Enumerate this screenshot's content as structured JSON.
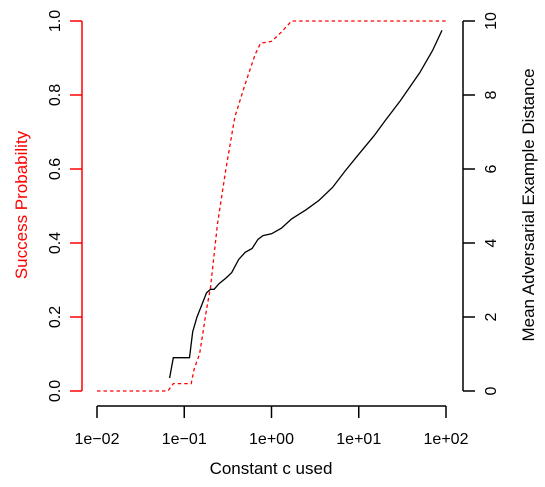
{
  "chart_data": {
    "type": "line",
    "title": "",
    "xlabel": "Constant c used",
    "x_scale": "log10",
    "x_ticks": [
      {
        "value": 0.01,
        "label": "1e−02"
      },
      {
        "value": 0.1,
        "label": "1e−01"
      },
      {
        "value": 1,
        "label": "1e+00"
      },
      {
        "value": 10,
        "label": "1e+01"
      },
      {
        "value": 100,
        "label": "1e+02"
      }
    ],
    "xlim": [
      0.01,
      100
    ],
    "left_axis": {
      "label": "Success Probability",
      "color": "#ff0000",
      "ylim": [
        0,
        1
      ],
      "ticks": [
        {
          "value": 0,
          "label": "0.0"
        },
        {
          "value": 0.2,
          "label": "0.2"
        },
        {
          "value": 0.4,
          "label": "0.4"
        },
        {
          "value": 0.6,
          "label": "0.6"
        },
        {
          "value": 0.8,
          "label": "0.8"
        },
        {
          "value": 1,
          "label": "1.0"
        }
      ]
    },
    "right_axis": {
      "label": "Mean Adversarial Example Distance",
      "color": "#000000",
      "ylim": [
        0,
        10
      ],
      "ticks": [
        {
          "value": 0,
          "label": "0"
        },
        {
          "value": 2,
          "label": "2"
        },
        {
          "value": 4,
          "label": "4"
        },
        {
          "value": 6,
          "label": "6"
        },
        {
          "value": 8,
          "label": "8"
        },
        {
          "value": 10,
          "label": "10"
        }
      ]
    },
    "grid": false,
    "legend": "none",
    "series": [
      {
        "axis": "left",
        "color": "#ff0000",
        "line_style": "dashed",
        "points": [
          [
            0.01,
            0.0
          ],
          [
            0.065,
            0.0
          ],
          [
            0.075,
            0.02
          ],
          [
            0.1,
            0.02
          ],
          [
            0.12,
            0.02
          ],
          [
            0.13,
            0.06
          ],
          [
            0.15,
            0.1
          ],
          [
            0.18,
            0.22
          ],
          [
            0.2,
            0.28
          ],
          [
            0.24,
            0.45
          ],
          [
            0.3,
            0.6
          ],
          [
            0.38,
            0.74
          ],
          [
            0.5,
            0.83
          ],
          [
            0.65,
            0.91
          ],
          [
            0.75,
            0.94
          ],
          [
            1.0,
            0.945
          ],
          [
            1.3,
            0.97
          ],
          [
            1.7,
            1.0
          ],
          [
            3,
            1.0
          ],
          [
            10,
            1.0
          ],
          [
            50,
            1.0
          ],
          [
            100,
            1.0
          ]
        ]
      },
      {
        "axis": "right",
        "color": "#000000",
        "line_style": "solid",
        "points": [
          [
            0.068,
            0.35
          ],
          [
            0.075,
            0.9
          ],
          [
            0.09,
            0.9
          ],
          [
            0.1,
            0.9
          ],
          [
            0.115,
            0.9
          ],
          [
            0.125,
            1.6
          ],
          [
            0.14,
            2.0
          ],
          [
            0.16,
            2.35
          ],
          [
            0.18,
            2.65
          ],
          [
            0.2,
            2.75
          ],
          [
            0.22,
            2.75
          ],
          [
            0.25,
            2.9
          ],
          [
            0.3,
            3.05
          ],
          [
            0.35,
            3.2
          ],
          [
            0.42,
            3.55
          ],
          [
            0.5,
            3.75
          ],
          [
            0.6,
            3.85
          ],
          [
            0.7,
            4.1
          ],
          [
            0.8,
            4.2
          ],
          [
            1.0,
            4.25
          ],
          [
            1.3,
            4.4
          ],
          [
            1.7,
            4.65
          ],
          [
            2.5,
            4.9
          ],
          [
            3.5,
            5.15
          ],
          [
            5.0,
            5.5
          ],
          [
            7.0,
            5.95
          ],
          [
            10,
            6.4
          ],
          [
            15,
            6.9
          ],
          [
            20,
            7.3
          ],
          [
            30,
            7.85
          ],
          [
            50,
            8.6
          ],
          [
            70,
            9.2
          ],
          [
            90,
            9.75
          ]
        ]
      }
    ]
  }
}
